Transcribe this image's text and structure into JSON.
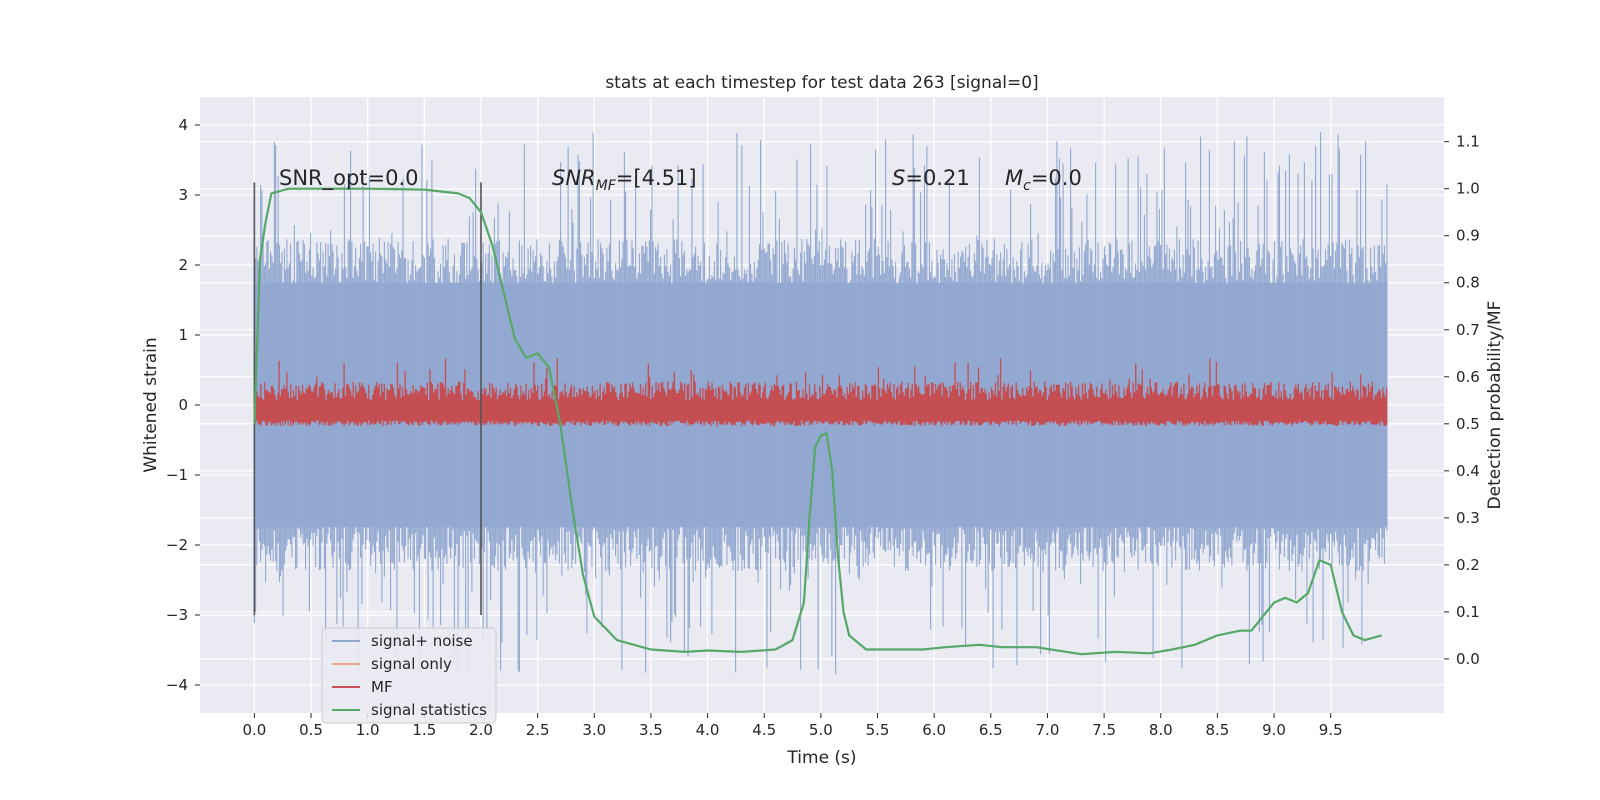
{
  "chart_data": {
    "type": "line",
    "title": "stats at each timestep for test data 263 [signal=0]",
    "xlabel": "Time (s)",
    "ylabel": "Whitened strain",
    "y2label": "Detection probability/MF",
    "xlim": [
      -0.48,
      10.5
    ],
    "ylim": [
      -4.4,
      4.4
    ],
    "y2lim": [
      -0.115,
      1.195
    ],
    "x_ticks": [
      0.0,
      0.5,
      1.0,
      1.5,
      2.0,
      2.5,
      3.0,
      3.5,
      4.0,
      4.5,
      5.0,
      5.5,
      6.0,
      6.5,
      7.0,
      7.5,
      8.0,
      8.5,
      9.0,
      9.5
    ],
    "x_tick_labels": [
      "0.0",
      "0.5",
      "1.0",
      "1.5",
      "2.0",
      "2.5",
      "3.0",
      "3.5",
      "4.0",
      "4.5",
      "5.0",
      "5.5",
      "6.0",
      "6.5",
      "7.0",
      "7.5",
      "8.0",
      "8.5",
      "9.0",
      "9.5"
    ],
    "y_ticks": [
      -4,
      -3,
      -2,
      -1,
      0,
      1,
      2,
      3,
      4
    ],
    "y_tick_labels": [
      "−4",
      "−3",
      "−2",
      "−1",
      "0",
      "1",
      "2",
      "3",
      "4"
    ],
    "y2_ticks": [
      0.0,
      0.1,
      0.2,
      0.3,
      0.4,
      0.5,
      0.6,
      0.7,
      0.8,
      0.9,
      1.0,
      1.1
    ],
    "y2_tick_labels": [
      "0.0",
      "0.1",
      "0.2",
      "0.3",
      "0.4",
      "0.5",
      "0.6",
      "0.7",
      "0.8",
      "0.9",
      "1.0",
      "1.1"
    ],
    "grid": true,
    "legend": {
      "placement": "lower-left",
      "entries": [
        {
          "label": "signal+ noise",
          "color": "#92a8d1"
        },
        {
          "label": "signal only",
          "color": "#e9a78c"
        },
        {
          "label": "MF",
          "color": "#c44e52"
        },
        {
          "label": "signal statistics",
          "color": "#55a868"
        }
      ]
    },
    "annotations": {
      "snr_opt": "SNR_opt=0.0",
      "snr_mf_main": "SNR",
      "snr_mf_sub": "MF",
      "snr_mf_rest": "=[4.51]",
      "s_main": "S",
      "s_rest": "=0.21",
      "mc_main": "M",
      "mc_sub": "c",
      "mc_rest": "=0.0"
    },
    "vlines": [
      0.0,
      2.0
    ],
    "vline_range": [
      -3.0,
      3.18
    ],
    "series": [
      {
        "label": "signal+ noise",
        "color": "#92a8d1",
        "x_range": [
          0.0,
          10.0
        ],
        "band_center": 0.0,
        "band_halfwidth": 1.9,
        "spike_max": 3.9,
        "spike_min": -3.85
      },
      {
        "label": "MF",
        "axis": "right",
        "color": "#c44e52",
        "x_range": [
          0.0,
          10.0
        ],
        "band_low": 0.5,
        "band_high": 0.57,
        "spike_max": 0.64
      },
      {
        "label": "signal statistics",
        "axis": "right",
        "color": "#55a868",
        "x": [
          0.0,
          0.05,
          0.1,
          0.15,
          0.3,
          0.5,
          1.0,
          1.5,
          1.8,
          1.9,
          2.0,
          2.1,
          2.2,
          2.3,
          2.4,
          2.5,
          2.6,
          2.7,
          2.8,
          2.9,
          3.0,
          3.2,
          3.5,
          3.8,
          4.0,
          4.3,
          4.6,
          4.75,
          4.85,
          4.9,
          4.95,
          5.0,
          5.05,
          5.1,
          5.15,
          5.2,
          5.25,
          5.4,
          5.6,
          5.9,
          6.1,
          6.4,
          6.6,
          6.9,
          7.3,
          7.6,
          7.9,
          8.1,
          8.3,
          8.5,
          8.7,
          8.8,
          8.9,
          9.0,
          9.1,
          9.2,
          9.3,
          9.4,
          9.5,
          9.6,
          9.7,
          9.8,
          9.95
        ],
        "y": [
          0.5,
          0.85,
          0.93,
          0.99,
          1.0,
          1.0,
          1.0,
          0.998,
          0.99,
          0.98,
          0.95,
          0.88,
          0.78,
          0.68,
          0.64,
          0.65,
          0.62,
          0.5,
          0.33,
          0.18,
          0.09,
          0.04,
          0.02,
          0.015,
          0.018,
          0.015,
          0.02,
          0.04,
          0.12,
          0.3,
          0.45,
          0.475,
          0.48,
          0.4,
          0.22,
          0.1,
          0.05,
          0.02,
          0.02,
          0.02,
          0.025,
          0.03,
          0.025,
          0.025,
          0.01,
          0.015,
          0.012,
          0.02,
          0.03,
          0.05,
          0.06,
          0.06,
          0.09,
          0.12,
          0.13,
          0.12,
          0.14,
          0.21,
          0.2,
          0.1,
          0.05,
          0.04,
          0.05
        ]
      }
    ]
  }
}
